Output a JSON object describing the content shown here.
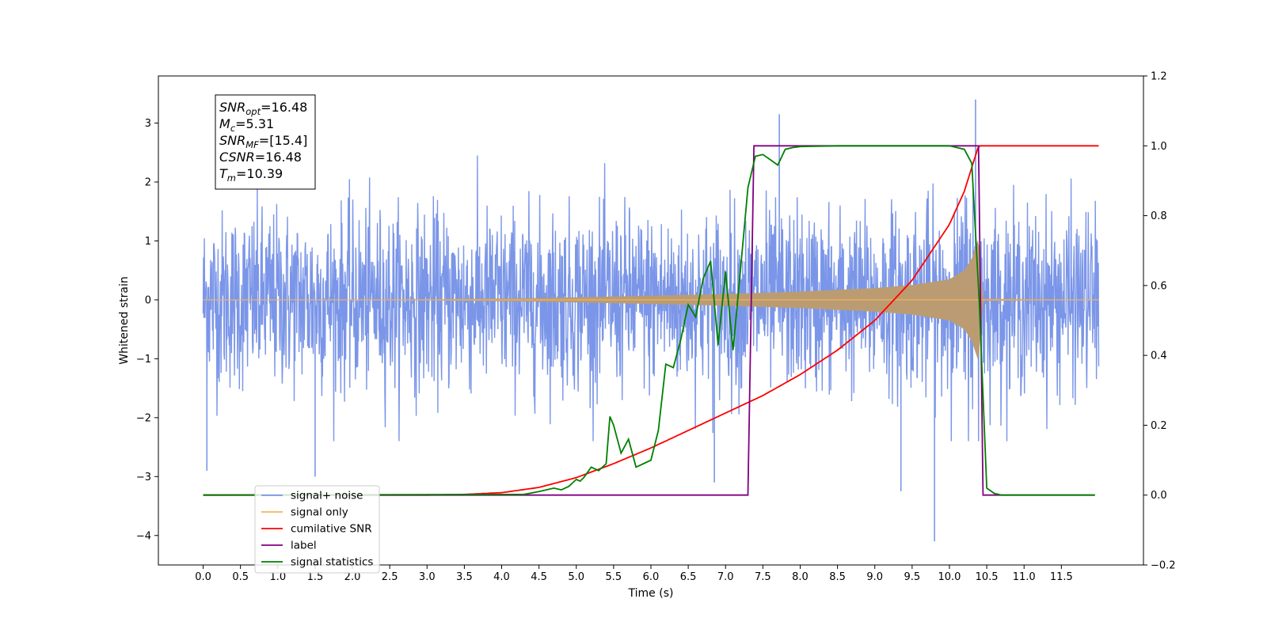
{
  "chart_data": {
    "type": "line",
    "xlabel": "Time (s)",
    "ylabel": "Whitened strain",
    "xlim": [
      -0.6,
      12.6
    ],
    "ylim": [
      -4.5,
      3.8
    ],
    "y2lim": [
      -0.2,
      1.2
    ],
    "x_ticks": [
      "0.0",
      "0.5",
      "1.0",
      "1.5",
      "2.0",
      "2.5",
      "3.0",
      "3.5",
      "4.0",
      "4.5",
      "5.0",
      "5.5",
      "6.0",
      "6.5",
      "7.0",
      "7.5",
      "8.0",
      "8.5",
      "9.0",
      "9.5",
      "10.0",
      "10.5",
      "11.0",
      "11.5"
    ],
    "y_ticks": [
      "−4",
      "−3",
      "−2",
      "−1",
      "0",
      "1",
      "2",
      "3"
    ],
    "y2_ticks": [
      "−0.2",
      "0.0",
      "0.2",
      "0.4",
      "0.6",
      "0.8",
      "1.0",
      "1.2"
    ],
    "legend_position": "lower left",
    "stats_box": [
      {
        "name": "SNR",
        "sub": "opt",
        "value": "=16.48"
      },
      {
        "name": "M",
        "sub": "c",
        "value": "=5.31"
      },
      {
        "name": "SNR",
        "sub": "MF",
        "value": "=[15.4]"
      },
      {
        "name": "CSNR",
        "sub": "",
        "value": "=16.48"
      },
      {
        "name": "T",
        "sub": "m",
        "value": "=10.39"
      }
    ],
    "series": [
      {
        "name": "signal+ noise",
        "axis": "left",
        "color": "#7b96e8",
        "description_values": {
          "x_range": [
            0.0,
            12.0
          ],
          "noise_std": 0.75,
          "notable_peaks": [
            [
              7.72,
              3.15
            ],
            [
              10.35,
              3.4
            ],
            [
              9.8,
              -4.1
            ],
            [
              9.35,
              -3.25
            ],
            [
              6.85,
              -3.1
            ],
            [
              1.5,
              -3.0
            ],
            [
              0.05,
              -2.9
            ]
          ]
        }
      },
      {
        "name": "signal only",
        "axis": "left",
        "color": "#f5b45a",
        "envelope": {
          "x": [
            0.0,
            3.0,
            4.5,
            6.0,
            7.0,
            8.0,
            9.0,
            9.5,
            10.0,
            10.2,
            10.3,
            10.39,
            10.45,
            12.0
          ],
          "amplitude": [
            0.0,
            0.01,
            0.03,
            0.07,
            0.1,
            0.14,
            0.2,
            0.25,
            0.35,
            0.5,
            0.7,
            1.05,
            0.02,
            0.0
          ]
        }
      },
      {
        "name": "cumilative SNR",
        "axis": "right",
        "color": "#ff0000",
        "x": [
          0.0,
          3.0,
          3.5,
          4.0,
          4.5,
          5.0,
          5.5,
          6.0,
          6.5,
          7.0,
          7.5,
          8.0,
          8.5,
          9.0,
          9.5,
          10.0,
          10.2,
          10.39,
          12.0
        ],
        "values": [
          0.0,
          0.0,
          0.002,
          0.007,
          0.022,
          0.05,
          0.09,
          0.135,
          0.185,
          0.235,
          0.285,
          0.345,
          0.415,
          0.5,
          0.615,
          0.775,
          0.87,
          1.0,
          1.0
        ]
      },
      {
        "name": "label",
        "axis": "right",
        "color": "#800080",
        "x": [
          0.0,
          7.3,
          7.38,
          10.39,
          10.45,
          11.95
        ],
        "values": [
          0.0,
          0.0,
          1.0,
          1.0,
          0.0,
          0.0
        ]
      },
      {
        "name": "signal statistics",
        "axis": "right",
        "color": "#008000",
        "x": [
          0.0,
          4.3,
          4.5,
          4.7,
          4.8,
          4.9,
          5.0,
          5.05,
          5.1,
          5.2,
          5.3,
          5.4,
          5.45,
          5.5,
          5.6,
          5.7,
          5.8,
          5.9,
          6.0,
          6.1,
          6.2,
          6.3,
          6.4,
          6.5,
          6.6,
          6.7,
          6.8,
          6.9,
          7.0,
          7.1,
          7.2,
          7.3,
          7.4,
          7.5,
          7.6,
          7.7,
          7.8,
          7.9,
          8.0,
          8.5,
          10.0,
          10.2,
          10.3,
          10.4,
          10.5,
          10.6,
          10.7,
          11.0,
          11.95
        ],
        "values": [
          0.0,
          0.002,
          0.01,
          0.02,
          0.015,
          0.025,
          0.045,
          0.04,
          0.05,
          0.08,
          0.07,
          0.09,
          0.225,
          0.2,
          0.12,
          0.16,
          0.08,
          0.09,
          0.1,
          0.185,
          0.375,
          0.365,
          0.445,
          0.545,
          0.51,
          0.62,
          0.67,
          0.43,
          0.64,
          0.415,
          0.645,
          0.88,
          0.97,
          0.975,
          0.96,
          0.945,
          0.99,
          0.995,
          0.998,
          1.0,
          1.0,
          0.99,
          0.95,
          0.55,
          0.02,
          0.005,
          0.0,
          0.0,
          0.0
        ]
      }
    ]
  }
}
